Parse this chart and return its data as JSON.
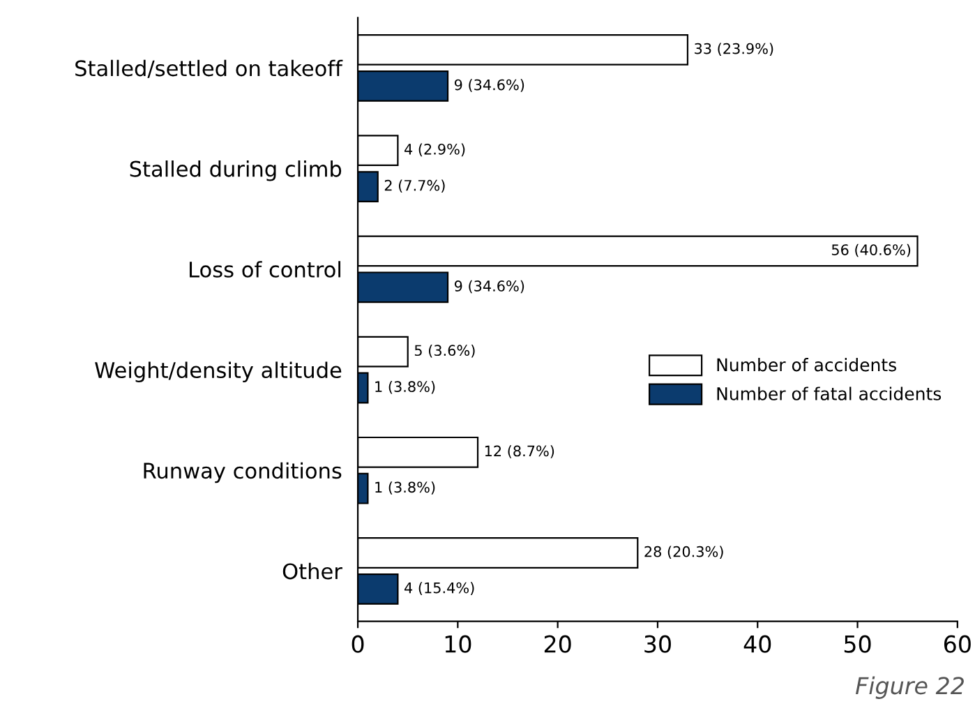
{
  "chart_data": {
    "type": "bar",
    "orientation": "horizontal",
    "categories": [
      "Stalled/settled on takeoff",
      "Stalled during climb",
      "Loss of control",
      "Weight/density altitude",
      "Runway conditions",
      "Other"
    ],
    "series": [
      {
        "name": "Number of accidents",
        "color": "#ffffff",
        "values": [
          33,
          4,
          56,
          5,
          12,
          28
        ],
        "value_labels": [
          "33 (23.9%)",
          "4 (2.9%)",
          "56 (40.6%)",
          "5 (3.6%)",
          "12 (8.7%)",
          "28 (20.3%)"
        ]
      },
      {
        "name": "Number of fatal accidents",
        "color": "#0b3b6e",
        "values": [
          9,
          2,
          9,
          1,
          1,
          4
        ],
        "value_labels": [
          "9 (34.6%)",
          "2 (7.7%)",
          "9 (34.6%)",
          "1 (3.8%)",
          "1 (3.8%)",
          "4 (15.4%)"
        ]
      }
    ],
    "xlim": [
      0,
      60
    ],
    "xticks": [
      0,
      10,
      20,
      30,
      40,
      50,
      60
    ],
    "legend": "right",
    "grid": false,
    "annotations": [
      "Figure 22"
    ]
  }
}
